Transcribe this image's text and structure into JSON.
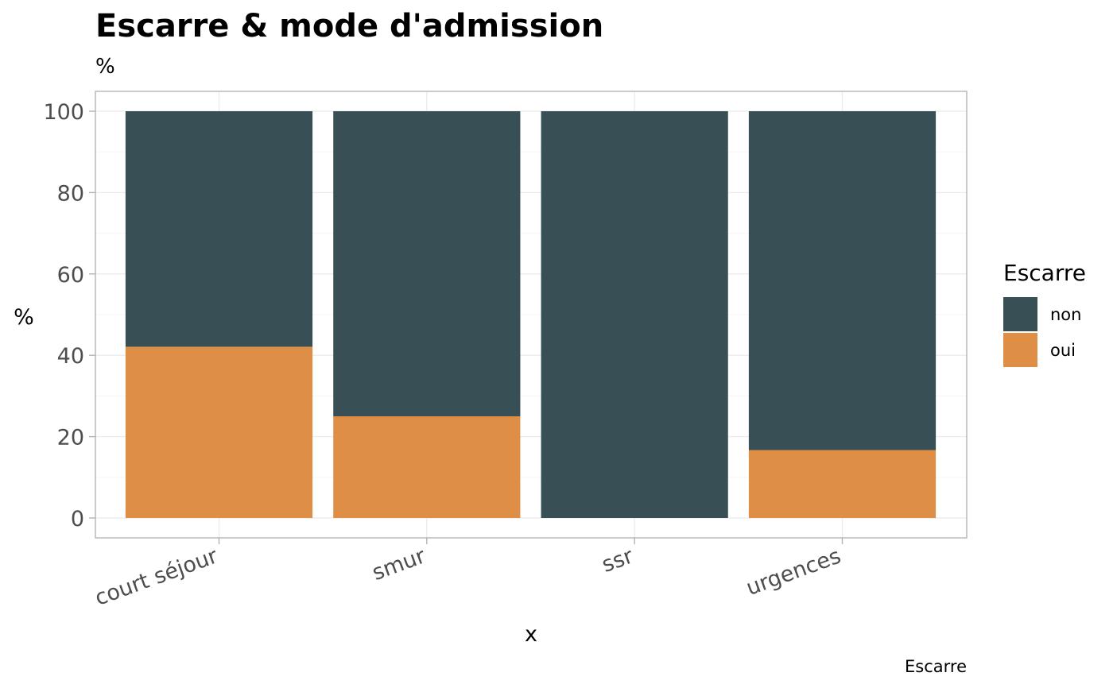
{
  "chart_data": {
    "type": "bar",
    "stacked": true,
    "title": "Escarre & mode d'admission",
    "subtitle": "%",
    "xlabel": "x",
    "ylabel": "%",
    "caption": "Escarre",
    "categories": [
      "court séjour",
      "smur",
      "ssr",
      "urgences"
    ],
    "series": [
      {
        "name": "non",
        "color": "#384f55",
        "values": [
          57.9,
          75,
          100,
          83.3
        ]
      },
      {
        "name": "oui",
        "color": "#de8f45",
        "values": [
          42.1,
          25,
          0,
          16.7
        ]
      }
    ],
    "ylim": [
      0,
      100
    ],
    "y_ticks": [
      "0",
      "20",
      "40",
      "60",
      "80",
      "100"
    ],
    "grid": true,
    "legend": {
      "title": "Escarre",
      "position": "right",
      "items": [
        {
          "label": "non",
          "color": "#384f55"
        },
        {
          "label": "oui",
          "color": "#de8f45"
        }
      ]
    }
  }
}
